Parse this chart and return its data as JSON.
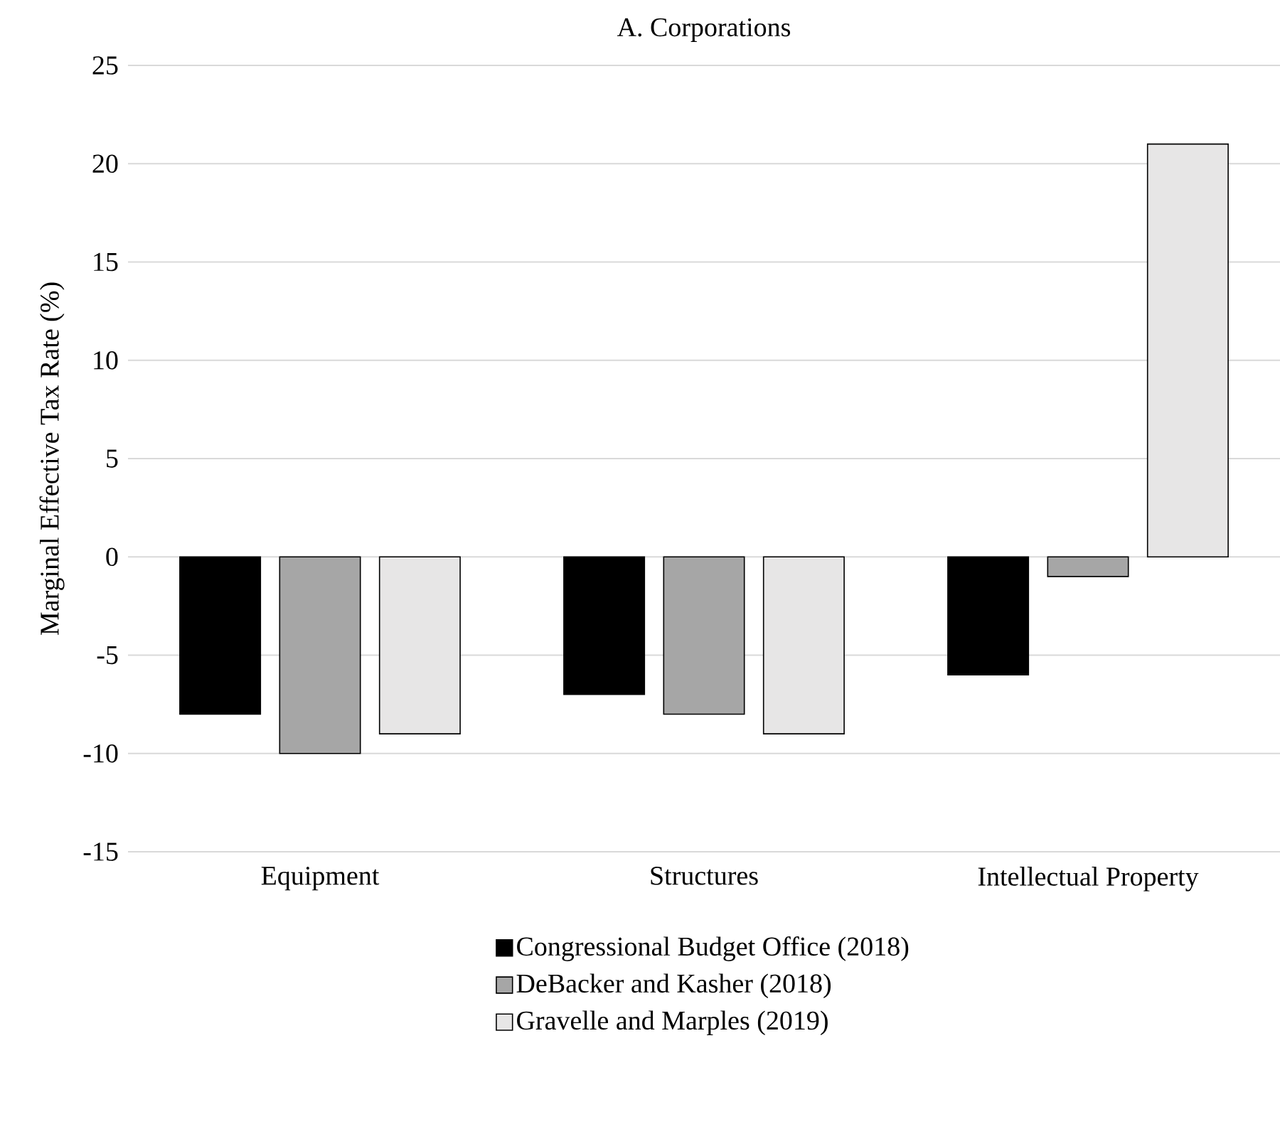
{
  "chart_data": {
    "type": "bar",
    "title": "A. Corporations",
    "ylabel": "Marginal Effective Tax Rate (%)",
    "categories": [
      "Equipment",
      "Structures",
      "Intellectual Property"
    ],
    "series": [
      {
        "name": "Congressional Budget Office (2018)",
        "color": "#000000",
        "values": [
          -8,
          -7,
          -6
        ]
      },
      {
        "name": "DeBacker and Kasher (2018)",
        "color": "#a6a6a6",
        "values": [
          -10,
          -8,
          -1
        ]
      },
      {
        "name": "Gravelle and Marples (2019)",
        "color": "#e7e6e6",
        "values": [
          -9,
          -9,
          21
        ]
      }
    ],
    "ylim": [
      -15,
      25
    ],
    "yticks": [
      -15,
      -10,
      -5,
      0,
      5,
      10,
      15,
      20,
      25
    ],
    "grid": "y",
    "legend": "bottom"
  }
}
